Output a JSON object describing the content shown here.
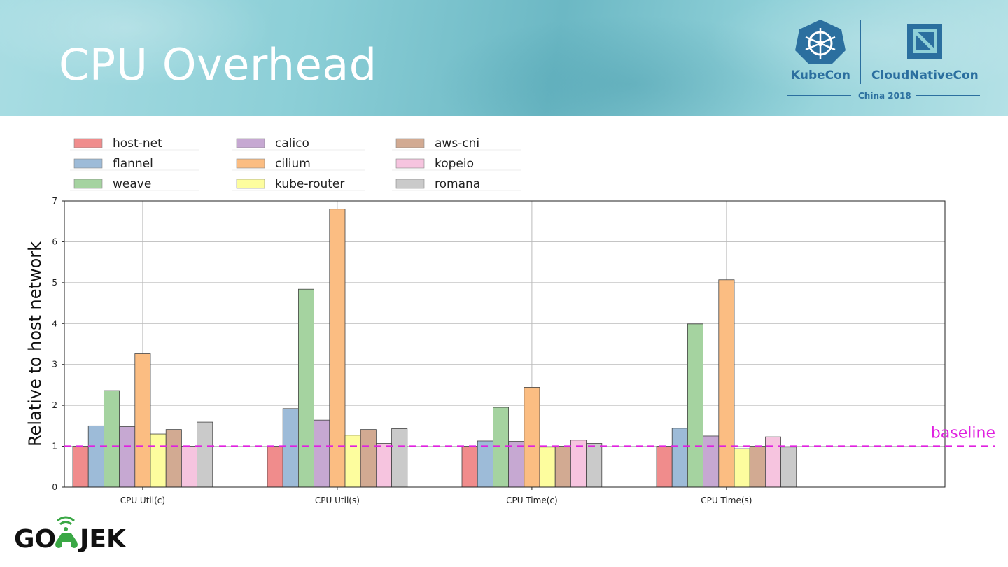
{
  "slide": {
    "title": "CPU Overhead",
    "baseline_label": "baseline",
    "baseline_color": "#e020e0"
  },
  "logos": {
    "kubecon": "KubeCon",
    "cloudnativecon": "CloudNativeCon",
    "event": "China 2018",
    "gojek_left": "GO",
    "gojek_right": "JEK"
  },
  "chart_data": {
    "type": "bar",
    "categories": [
      "CPU Util(c)",
      "CPU Util(s)",
      "CPU Time(c)",
      "CPU Time(s)"
    ],
    "ylabel": "Relative to host network",
    "xlabel": "",
    "ylim": [
      0,
      7
    ],
    "yticks": [
      0,
      1,
      2,
      3,
      4,
      5,
      6,
      7
    ],
    "grid": true,
    "legend_position": "top-left (above plot)",
    "baseline": 1,
    "series": [
      {
        "name": "host-net",
        "color": "#f08c8c",
        "values": [
          1.0,
          1.0,
          1.0,
          1.0
        ]
      },
      {
        "name": "flannel",
        "color": "#9dbbd8",
        "values": [
          1.5,
          1.92,
          1.13,
          1.44
        ]
      },
      {
        "name": "weave",
        "color": "#a5d3a0",
        "values": [
          2.36,
          4.84,
          1.95,
          3.99
        ]
      },
      {
        "name": "calico",
        "color": "#c6a8d2",
        "values": [
          1.48,
          1.64,
          1.12,
          1.25
        ]
      },
      {
        "name": "cilium",
        "color": "#fbbd82",
        "values": [
          3.26,
          6.8,
          2.44,
          5.07
        ]
      },
      {
        "name": "kube-router",
        "color": "#fdfd9e",
        "values": [
          1.3,
          1.27,
          0.98,
          0.94
        ]
      },
      {
        "name": "aws-cni",
        "color": "#d2aa92",
        "values": [
          1.41,
          1.41,
          1.0,
          1.0
        ]
      },
      {
        "name": "kopeio",
        "color": "#f6c4df",
        "values": [
          1.0,
          1.07,
          1.15,
          1.23
        ]
      },
      {
        "name": "romana",
        "color": "#cacaca",
        "values": [
          1.59,
          1.43,
          1.07,
          0.98
        ]
      }
    ]
  }
}
